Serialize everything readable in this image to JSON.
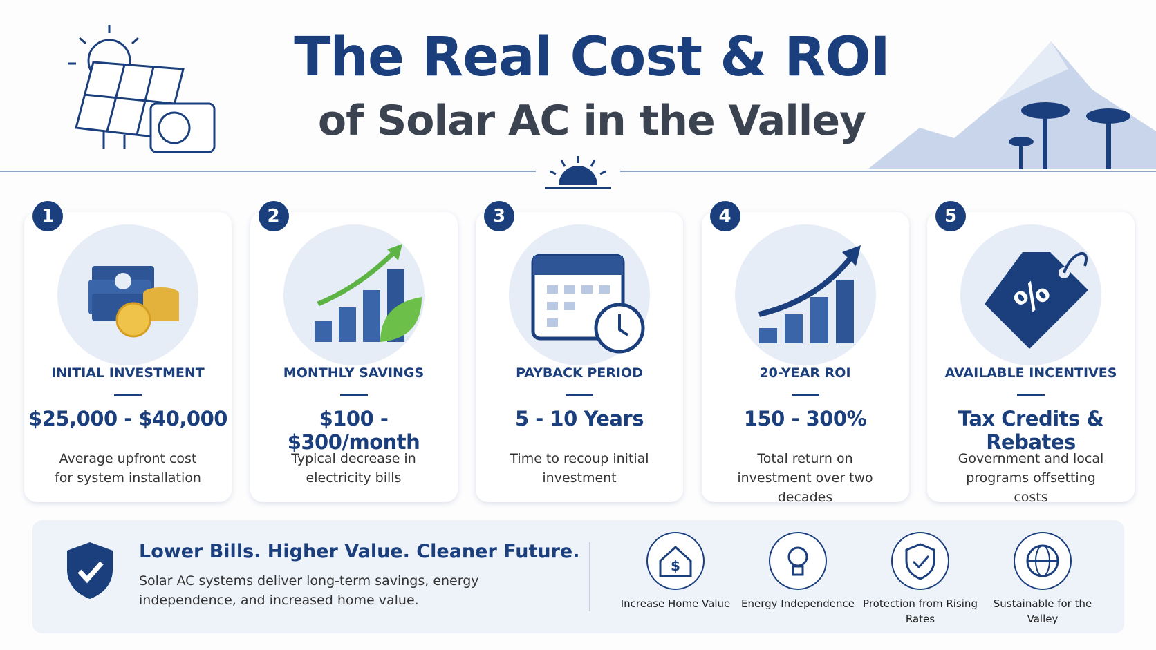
{
  "header": {
    "title_line1": "The Real Cost & ROI",
    "title_line2": "of Solar AC in the Valley"
  },
  "cards": [
    {
      "number": 1,
      "label": "INITIAL INVESTMENT",
      "value": "$25,000 - $40,000",
      "description": "Average upfront cost for system installation"
    },
    {
      "number": 2,
      "label": "MONTHLY SAVINGS",
      "value": "$100 - $300/month",
      "description": "Typical decrease in electricity bills"
    },
    {
      "number": 3,
      "label": "PAYBACK PERIOD",
      "value": "5 - 10 Years",
      "description": "Time to recoup initial investment"
    },
    {
      "number": 4,
      "label": "20-YEAR ROI",
      "value": "150 - 300%",
      "description": "Total return on investment over two decades"
    },
    {
      "number": 5,
      "label": "AVAILABLE INCENTIVES",
      "value": "Tax Credits & Rebates",
      "description": "Government and local programs offsetting costs"
    }
  ],
  "footer": {
    "headline": "Lower Bills. Higher Value. Cleaner Future.",
    "text": "Solar AC systems deliver long-term savings, energy independence, and increased home value.",
    "features": [
      "Increase Home Value",
      "Energy Independence",
      "Protection from Rising Rates",
      "Sustainable for the Valley"
    ]
  }
}
